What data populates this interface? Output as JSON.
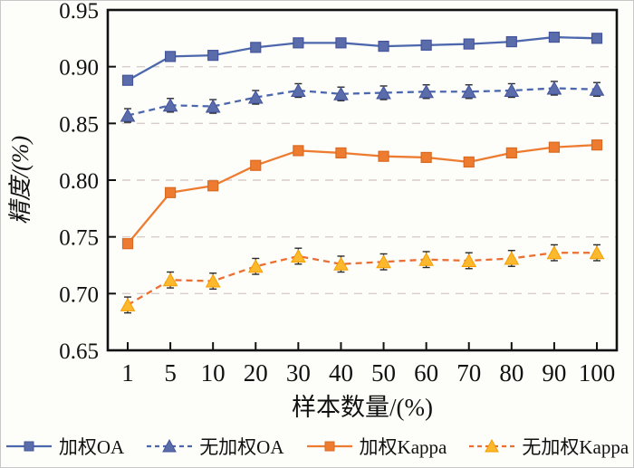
{
  "figure": {
    "background": "#fdfdf9",
    "border_color": "#c8c8c8"
  },
  "chart_data": {
    "type": "line",
    "title": "",
    "xlabel": "样本数量/(%)",
    "ylabel": "精度/(%)",
    "x_categories": [
      "1",
      "5",
      "10",
      "20",
      "30",
      "40",
      "50",
      "60",
      "70",
      "80",
      "90",
      "100"
    ],
    "ylim": [
      0.65,
      0.95
    ],
    "yticks": [
      0.65,
      0.7,
      0.75,
      0.8,
      0.85,
      0.9,
      0.95
    ],
    "ytick_labels": [
      "0.65",
      "0.70",
      "0.75",
      "0.80",
      "0.85",
      "0.90",
      "0.95"
    ],
    "grid": "horizontal-dashed",
    "legend_position": "bottom",
    "colors": {
      "axis": "#111111",
      "grid": "#d9cdc7",
      "error_bar": "#2a2a2a"
    },
    "series": [
      {
        "name": "加权OA",
        "slug": "weighted-oa",
        "marker": "square",
        "line": "solid",
        "line_color": "#4c67ac",
        "marker_fill": "#5b6cab",
        "marker_edge": "#44549c",
        "error": 0.003,
        "values": [
          0.888,
          0.909,
          0.91,
          0.917,
          0.921,
          0.921,
          0.918,
          0.919,
          0.92,
          0.922,
          0.926,
          0.925
        ]
      },
      {
        "name": "无加权OA",
        "slug": "unweighted-oa",
        "marker": "triangle",
        "line": "dashed",
        "line_color": "#4c67ac",
        "marker_fill": "#5b6cab",
        "marker_edge": "#44549c",
        "error": 0.006,
        "values": [
          0.857,
          0.866,
          0.865,
          0.873,
          0.879,
          0.876,
          0.877,
          0.878,
          0.878,
          0.879,
          0.881,
          0.88
        ]
      },
      {
        "name": "加权Kappa",
        "slug": "weighted-kappa",
        "marker": "square",
        "line": "solid",
        "line_color": "#ed7c31",
        "marker_fill": "#ed7c31",
        "marker_edge": "#d96a20",
        "error": 0.003,
        "values": [
          0.744,
          0.789,
          0.795,
          0.813,
          0.826,
          0.824,
          0.821,
          0.82,
          0.816,
          0.824,
          0.829,
          0.831
        ]
      },
      {
        "name": "无加权Kappa",
        "slug": "unweighted-kappa",
        "marker": "triangle",
        "line": "dashed",
        "line_color": "#ea6f33",
        "marker_fill": "#fdb92e",
        "marker_edge": "#f59d00",
        "error": 0.007,
        "values": [
          0.69,
          0.712,
          0.711,
          0.724,
          0.733,
          0.726,
          0.728,
          0.73,
          0.729,
          0.731,
          0.736,
          0.736
        ]
      }
    ]
  }
}
